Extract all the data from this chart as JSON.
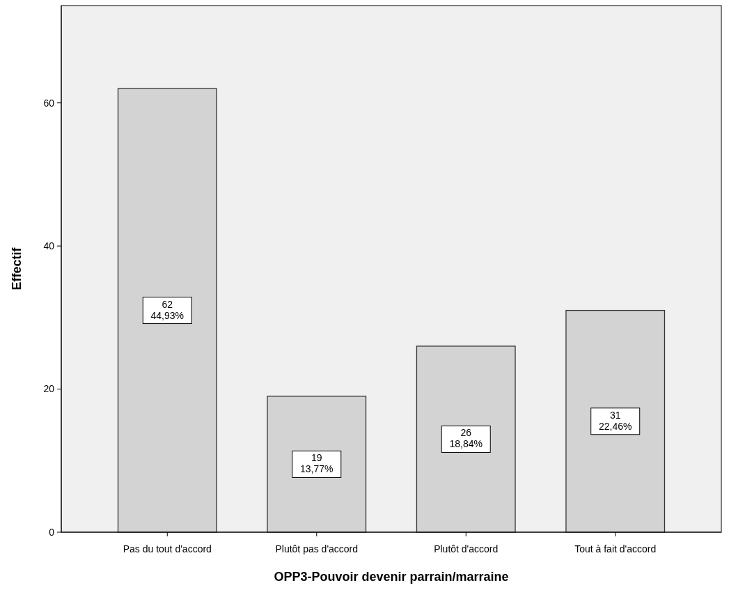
{
  "chart_data": {
    "type": "bar",
    "xlabel": "OPP3-Pouvoir devenir parrain/marraine",
    "ylabel": "Effectif",
    "categories": [
      "Pas du tout d'accord",
      "Plutôt pas d'accord",
      "Plutôt d'accord",
      "Tout à fait d'accord"
    ],
    "values": [
      62,
      19,
      26,
      31
    ],
    "value_labels": [
      "62\n44,93%",
      "19\n13,77%",
      "26\n18,84%",
      "31\n22,46%"
    ],
    "color": "#d3d3d3",
    "ylim": [
      0,
      73.6
    ],
    "yticks": [
      0,
      20,
      40,
      60
    ],
    "grid": false
  }
}
